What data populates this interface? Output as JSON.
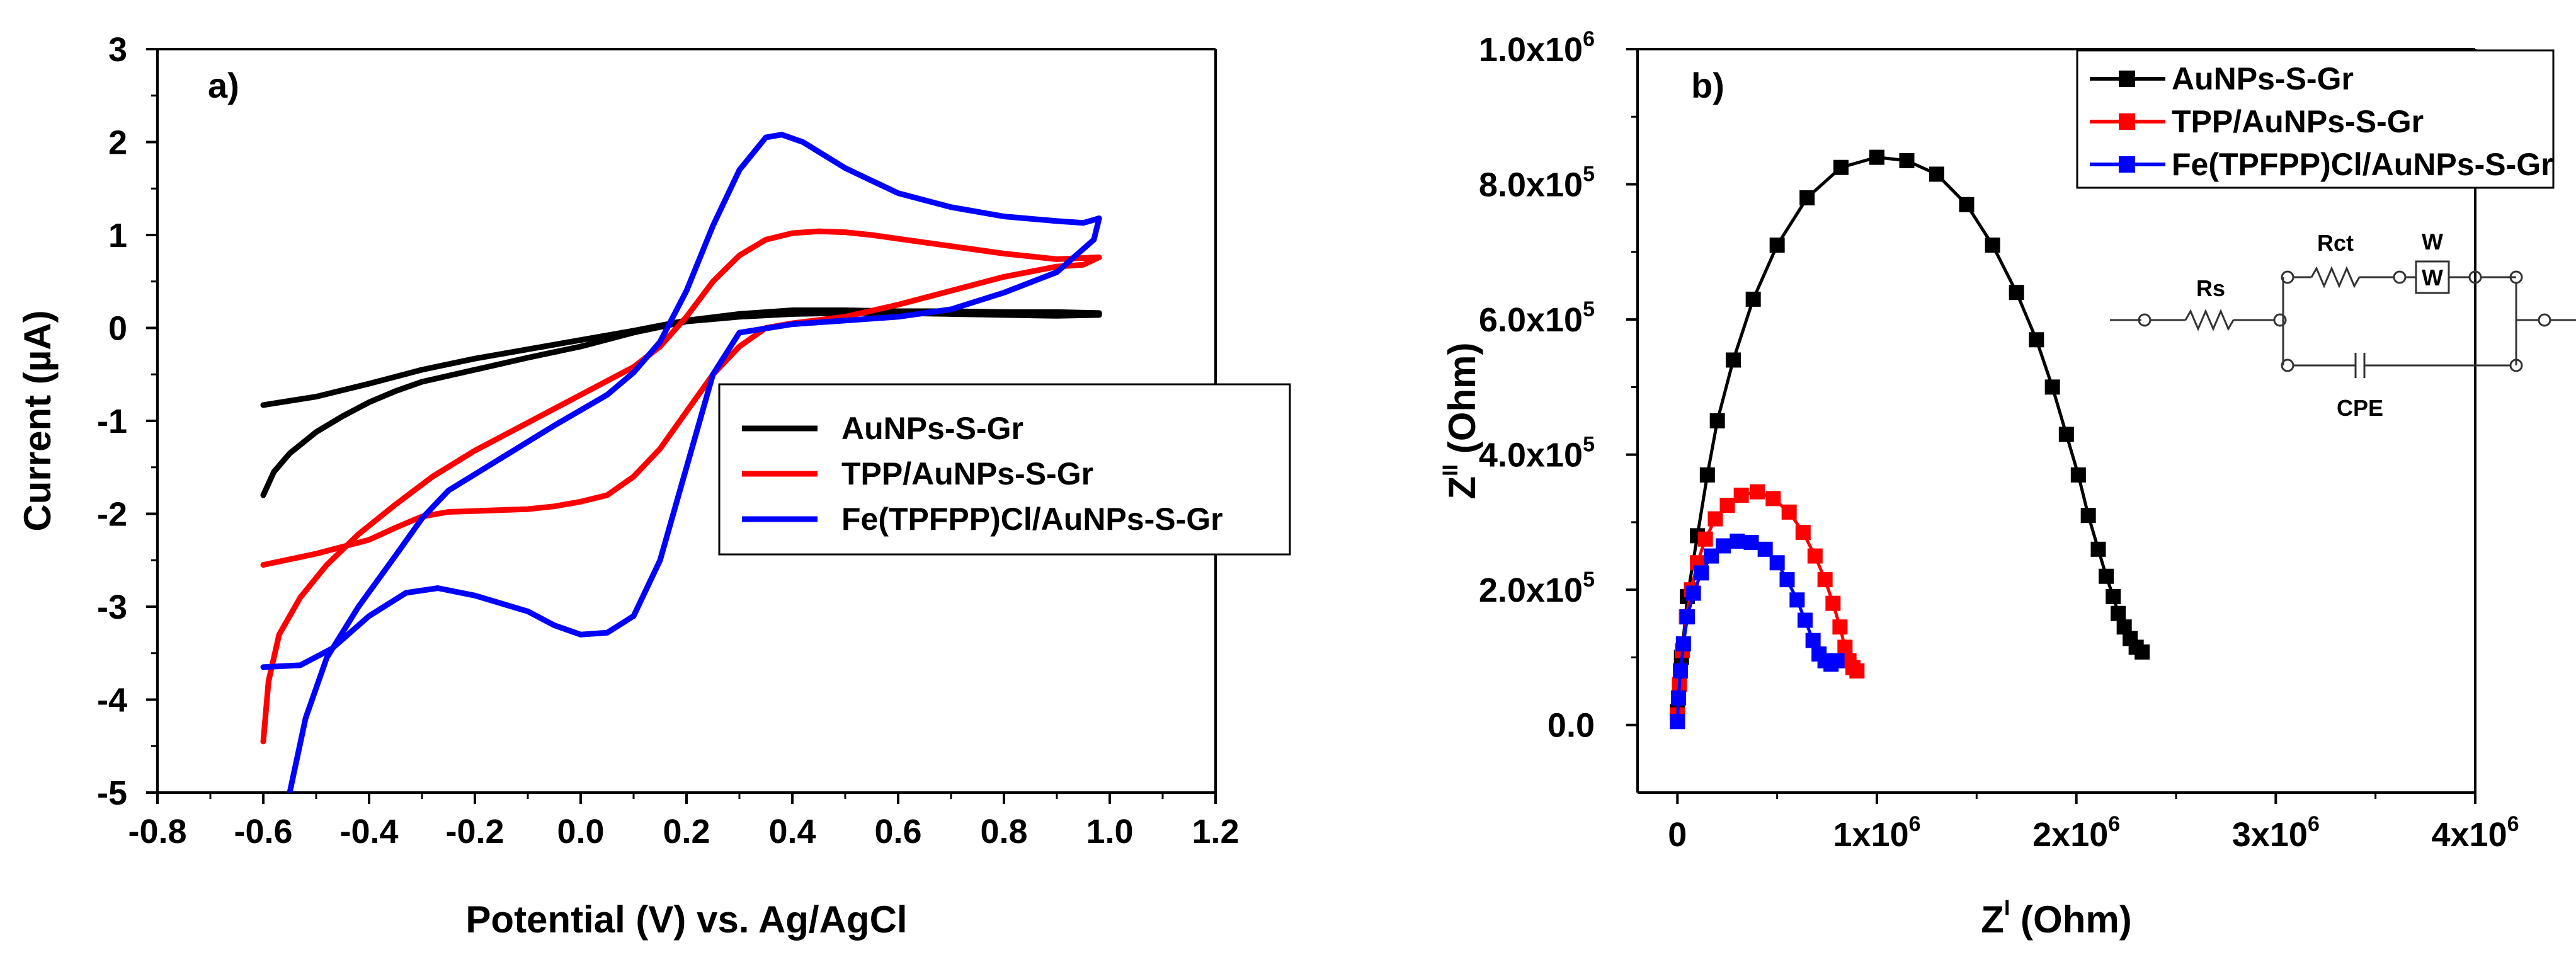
{
  "chart_data": [
    {
      "type": "line",
      "panel_label": "a)",
      "xlabel": "Potential (V) vs. Ag/AgCl",
      "ylabel": "Current (µA)",
      "xlim": [
        -0.8,
        1.2
      ],
      "ylim": [
        -5,
        3
      ],
      "xticks": [
        -0.8,
        -0.6,
        -0.4,
        -0.2,
        0.0,
        0.2,
        0.4,
        0.6,
        0.8,
        1.0,
        1.2
      ],
      "xtick_labels": [
        "-0.8",
        "-0.6",
        "-0.4",
        "-0.2",
        "0.0",
        "0.2",
        "0.4",
        "0.6",
        "0.8",
        "1.0",
        "1.2"
      ],
      "yticks": [
        -5,
        -4,
        -3,
        -2,
        -1,
        0,
        1,
        2,
        3
      ],
      "ytick_labels": [
        "-5",
        "-4",
        "-3",
        "-2",
        "-1",
        "0",
        "1",
        "2",
        "3"
      ],
      "legend_position": "center-right",
      "series": [
        {
          "name": "AuNPs-S-Gr",
          "color": "#000000",
          "points": [
            [
              -0.6,
              -1.8
            ],
            [
              -0.58,
              -1.55
            ],
            [
              -0.55,
              -1.35
            ],
            [
              -0.5,
              -1.12
            ],
            [
              -0.45,
              -0.95
            ],
            [
              -0.4,
              -0.8
            ],
            [
              -0.35,
              -0.68
            ],
            [
              -0.3,
              -0.58
            ],
            [
              -0.2,
              -0.45
            ],
            [
              -0.1,
              -0.32
            ],
            [
              0.0,
              -0.2
            ],
            [
              0.1,
              -0.05
            ],
            [
              0.2,
              0.07
            ],
            [
              0.3,
              0.12
            ],
            [
              0.4,
              0.15
            ],
            [
              0.5,
              0.16
            ],
            [
              0.6,
              0.16
            ],
            [
              0.7,
              0.15
            ],
            [
              0.8,
              0.14
            ],
            [
              0.9,
              0.13
            ],
            [
              0.98,
              0.14
            ],
            [
              0.98,
              0.16
            ],
            [
              0.9,
              0.17
            ],
            [
              0.8,
              0.17
            ],
            [
              0.7,
              0.18
            ],
            [
              0.6,
              0.18
            ],
            [
              0.5,
              0.19
            ],
            [
              0.4,
              0.19
            ],
            [
              0.3,
              0.15
            ],
            [
              0.2,
              0.08
            ],
            [
              0.1,
              -0.03
            ],
            [
              0.0,
              -0.13
            ],
            [
              -0.1,
              -0.23
            ],
            [
              -0.2,
              -0.33
            ],
            [
              -0.3,
              -0.45
            ],
            [
              -0.4,
              -0.6
            ],
            [
              -0.5,
              -0.74
            ],
            [
              -0.6,
              -0.83
            ]
          ]
        },
        {
          "name": "TPP/AuNPs-S-Gr",
          "color": "#ff0000",
          "points": [
            [
              -0.6,
              -4.45
            ],
            [
              -0.59,
              -3.8
            ],
            [
              -0.57,
              -3.3
            ],
            [
              -0.53,
              -2.9
            ],
            [
              -0.48,
              -2.55
            ],
            [
              -0.42,
              -2.22
            ],
            [
              -0.35,
              -1.9
            ],
            [
              -0.28,
              -1.6
            ],
            [
              -0.2,
              -1.32
            ],
            [
              -0.1,
              -1.02
            ],
            [
              0.0,
              -0.72
            ],
            [
              0.1,
              -0.42
            ],
            [
              0.15,
              -0.2
            ],
            [
              0.2,
              0.12
            ],
            [
              0.25,
              0.5
            ],
            [
              0.3,
              0.78
            ],
            [
              0.35,
              0.95
            ],
            [
              0.4,
              1.02
            ],
            [
              0.45,
              1.04
            ],
            [
              0.5,
              1.03
            ],
            [
              0.55,
              1.0
            ],
            [
              0.6,
              0.96
            ],
            [
              0.7,
              0.88
            ],
            [
              0.8,
              0.8
            ],
            [
              0.9,
              0.74
            ],
            [
              0.98,
              0.76
            ],
            [
              0.95,
              0.68
            ],
            [
              0.9,
              0.66
            ],
            [
              0.8,
              0.55
            ],
            [
              0.7,
              0.4
            ],
            [
              0.6,
              0.25
            ],
            [
              0.5,
              0.12
            ],
            [
              0.4,
              0.05
            ],
            [
              0.35,
              0.0
            ],
            [
              0.3,
              -0.2
            ],
            [
              0.25,
              -0.5
            ],
            [
              0.2,
              -0.9
            ],
            [
              0.15,
              -1.3
            ],
            [
              0.1,
              -1.6
            ],
            [
              0.05,
              -1.8
            ],
            [
              0.0,
              -1.87
            ],
            [
              -0.05,
              -1.92
            ],
            [
              -0.1,
              -1.95
            ],
            [
              -0.2,
              -1.97
            ],
            [
              -0.25,
              -1.98
            ],
            [
              -0.3,
              -2.03
            ],
            [
              -0.35,
              -2.15
            ],
            [
              -0.4,
              -2.28
            ],
            [
              -0.5,
              -2.43
            ],
            [
              -0.6,
              -2.55
            ]
          ]
        },
        {
          "name": "Fe(TPFPP)Cl/AuNPs-S-Gr",
          "color": "#0000ff",
          "points": [
            [
              -0.55,
              -5.0
            ],
            [
              -0.52,
              -4.2
            ],
            [
              -0.48,
              -3.55
            ],
            [
              -0.42,
              -3.0
            ],
            [
              -0.35,
              -2.45
            ],
            [
              -0.3,
              -2.05
            ],
            [
              -0.25,
              -1.75
            ],
            [
              -0.15,
              -1.4
            ],
            [
              -0.05,
              -1.05
            ],
            [
              0.05,
              -0.72
            ],
            [
              0.1,
              -0.48
            ],
            [
              0.15,
              -0.15
            ],
            [
              0.2,
              0.4
            ],
            [
              0.25,
              1.1
            ],
            [
              0.3,
              1.7
            ],
            [
              0.35,
              2.05
            ],
            [
              0.38,
              2.08
            ],
            [
              0.42,
              2.0
            ],
            [
              0.5,
              1.72
            ],
            [
              0.6,
              1.45
            ],
            [
              0.7,
              1.3
            ],
            [
              0.8,
              1.2
            ],
            [
              0.9,
              1.15
            ],
            [
              0.95,
              1.13
            ],
            [
              0.98,
              1.18
            ],
            [
              0.97,
              0.95
            ],
            [
              0.9,
              0.6
            ],
            [
              0.8,
              0.38
            ],
            [
              0.7,
              0.2
            ],
            [
              0.6,
              0.12
            ],
            [
              0.5,
              0.08
            ],
            [
              0.4,
              0.04
            ],
            [
              0.3,
              -0.05
            ],
            [
              0.25,
              -0.5
            ],
            [
              0.2,
              -1.5
            ],
            [
              0.15,
              -2.5
            ],
            [
              0.1,
              -3.1
            ],
            [
              0.05,
              -3.28
            ],
            [
              0.0,
              -3.3
            ],
            [
              -0.05,
              -3.2
            ],
            [
              -0.1,
              -3.05
            ],
            [
              -0.2,
              -2.88
            ],
            [
              -0.27,
              -2.8
            ],
            [
              -0.33,
              -2.85
            ],
            [
              -0.4,
              -3.1
            ],
            [
              -0.47,
              -3.45
            ],
            [
              -0.53,
              -3.63
            ],
            [
              -0.6,
              -3.65
            ]
          ]
        }
      ]
    },
    {
      "type": "scatter",
      "panel_label": "b)",
      "xlabel_base": "Z",
      "xlabel_sup": "I",
      "xlabel_unit": " (Ohm)",
      "ylabel_base": "Z",
      "ylabel_sup": "II",
      "ylabel_unit": " (Ohm)",
      "xlim": [
        -200000,
        4000000
      ],
      "ylim": [
        -100000,
        1000000
      ],
      "xticks": [
        0,
        1000000,
        2000000,
        3000000,
        4000000
      ],
      "xtick_labels": [
        {
          "base": "0",
          "sup": ""
        },
        {
          "base": "1x10",
          "sup": "6"
        },
        {
          "base": "2x10",
          "sup": "6"
        },
        {
          "base": "3x10",
          "sup": "6"
        },
        {
          "base": "4x10",
          "sup": "6"
        }
      ],
      "yticks": [
        0,
        200000,
        400000,
        600000,
        800000,
        1000000
      ],
      "ytick_labels": [
        {
          "base": "0.0",
          "sup": ""
        },
        {
          "base": "2.0x10",
          "sup": "5"
        },
        {
          "base": "4.0x10",
          "sup": "5"
        },
        {
          "base": "6.0x10",
          "sup": "5"
        },
        {
          "base": "8.0x10",
          "sup": "5"
        },
        {
          "base": "1.0x10",
          "sup": "6"
        }
      ],
      "legend_position": "top-right",
      "circuit": {
        "Rs": "Rs",
        "Rct": "Rct",
        "W": "W",
        "CPE": "CPE"
      },
      "series": [
        {
          "name": "AuNPs-S-Gr",
          "color": "#000000",
          "points": [
            [
              0,
              20000
            ],
            [
              20000,
              100000
            ],
            [
              50000,
              190000
            ],
            [
              100000,
              280000
            ],
            [
              150000,
              370000
            ],
            [
              200000,
              450000
            ],
            [
              280000,
              540000
            ],
            [
              380000,
              630000
            ],
            [
              500000,
              710000
            ],
            [
              650000,
              780000
            ],
            [
              820000,
              825000
            ],
            [
              1000000,
              840000
            ],
            [
              1150000,
              835000
            ],
            [
              1300000,
              815000
            ],
            [
              1450000,
              770000
            ],
            [
              1580000,
              710000
            ],
            [
              1700000,
              640000
            ],
            [
              1800000,
              570000
            ],
            [
              1880000,
              500000
            ],
            [
              1950000,
              430000
            ],
            [
              2010000,
              370000
            ],
            [
              2060000,
              310000
            ],
            [
              2110000,
              260000
            ],
            [
              2150000,
              220000
            ],
            [
              2185000,
              190000
            ],
            [
              2210000,
              165000
            ],
            [
              2240000,
              145000
            ],
            [
              2270000,
              128000
            ],
            [
              2300000,
              115000
            ],
            [
              2330000,
              108000
            ]
          ]
        },
        {
          "name": "TPP/AuNPs-S-Gr",
          "color": "#ff0000",
          "points": [
            [
              0,
              15000
            ],
            [
              10000,
              60000
            ],
            [
              25000,
              110000
            ],
            [
              45000,
              160000
            ],
            [
              70000,
              200000
            ],
            [
              100000,
              240000
            ],
            [
              140000,
              275000
            ],
            [
              190000,
              305000
            ],
            [
              250000,
              325000
            ],
            [
              320000,
              340000
            ],
            [
              400000,
              345000
            ],
            [
              480000,
              335000
            ],
            [
              560000,
              315000
            ],
            [
              630000,
              285000
            ],
            [
              690000,
              250000
            ],
            [
              740000,
              215000
            ],
            [
              780000,
              180000
            ],
            [
              815000,
              145000
            ],
            [
              840000,
              115000
            ],
            [
              860000,
              95000
            ],
            [
              880000,
              85000
            ],
            [
              900000,
              80000
            ]
          ]
        },
        {
          "name": "Fe(TPFPP)Cl/AuNPs-S-Gr",
          "color": "#0000ff",
          "points": [
            [
              0,
              5000
            ],
            [
              5000,
              40000
            ],
            [
              15000,
              80000
            ],
            [
              30000,
              120000
            ],
            [
              50000,
              160000
            ],
            [
              80000,
              195000
            ],
            [
              120000,
              225000
            ],
            [
              170000,
              250000
            ],
            [
              230000,
              265000
            ],
            [
              300000,
              272000
            ],
            [
              370000,
              270000
            ],
            [
              440000,
              260000
            ],
            [
              500000,
              240000
            ],
            [
              550000,
              215000
            ],
            [
              600000,
              185000
            ],
            [
              640000,
              155000
            ],
            [
              680000,
              125000
            ],
            [
              710000,
              105000
            ],
            [
              740000,
              95000
            ],
            [
              770000,
              90000
            ],
            [
              800000,
              95000
            ]
          ]
        }
      ]
    }
  ]
}
